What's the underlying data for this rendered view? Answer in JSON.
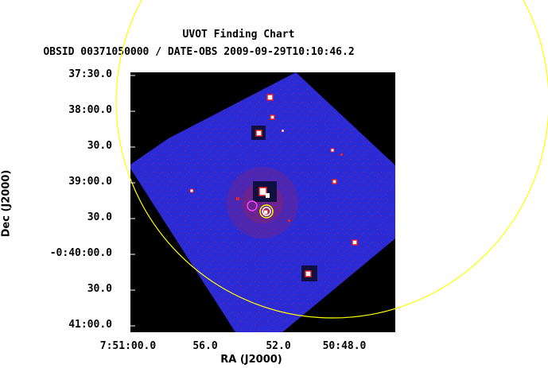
{
  "title_line1": "UVOT Finding Chart",
  "title_line2": "OBSID 00371050000 / DATE-OBS 2009-09-29T10:10:46.2",
  "xlabel": "RA (J2000)",
  "ylabel": "Dec (J2000)",
  "y_ticks": [
    "37:30.0",
    "38:00.0",
    "30.0",
    "39:00.0",
    "30.0",
    "-0:40:00.0",
    "30.0",
    "41:00.0"
  ],
  "x_ticks": [
    "7:51:00.0",
    "56.0",
    "52.0",
    "50:48.0"
  ],
  "colors": {
    "background": "#000000",
    "image_field": "#2b2bd6",
    "hot_pixels": "#e0202a",
    "bright_sources": "#ffffff",
    "large_circle": "#ffff00",
    "source_circle_yellow": "#ffff00",
    "source_circle_white": "#ffffff",
    "source_circle_magenta": "#ff40ff"
  }
}
